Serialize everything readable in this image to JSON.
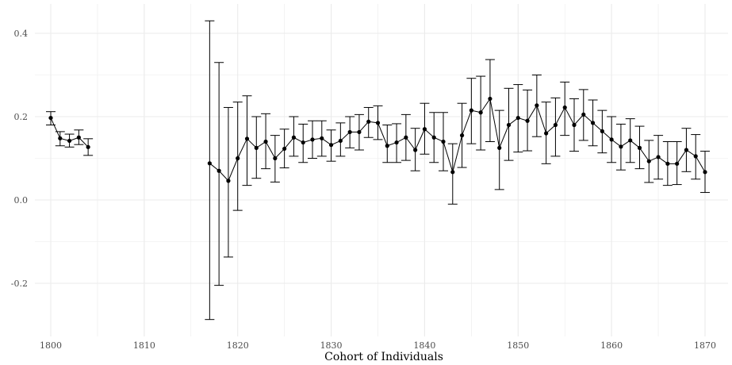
{
  "chart_data": {
    "type": "line",
    "title": "",
    "xlabel": "Cohort of Individuals",
    "ylabel": "",
    "xlim": [
      1796.5,
      1873.5
    ],
    "ylim": [
      -0.31,
      0.46
    ],
    "x_ticks": [
      1800,
      1810,
      1820,
      1830,
      1840,
      1850,
      1860,
      1870
    ],
    "x_tick_labels": [
      "1800",
      "1810",
      "1820",
      "1830",
      "1840",
      "1850",
      "1860",
      "1870"
    ],
    "y_ticks": [
      -0.2,
      0.0,
      0.2,
      0.4
    ],
    "y_tick_labels": [
      "-0.2",
      "0.0",
      "0.2",
      "0.4"
    ],
    "grid": true,
    "legend": "none",
    "colors": {
      "line": "#000000",
      "grid": "#ebebeb",
      "background": "#ffffff"
    },
    "series": [
      {
        "segments": [
          {
            "x": [
              1800,
              1801,
              1802,
              1803,
              1804
            ],
            "y": [
              0.197,
              0.148,
              0.142,
              0.15,
              0.127
            ],
            "lower": [
              0.18,
              0.13,
              0.127,
              0.133,
              0.107
            ],
            "upper": [
              0.212,
              0.164,
              0.158,
              0.168,
              0.147
            ]
          },
          {
            "x": [
              1817,
              1818,
              1819,
              1820,
              1821,
              1822,
              1823,
              1824,
              1825,
              1826,
              1827,
              1828,
              1829,
              1830,
              1831,
              1832,
              1833,
              1834,
              1835,
              1836,
              1837,
              1838,
              1839,
              1840,
              1841,
              1842,
              1843,
              1844,
              1845,
              1846,
              1847,
              1848,
              1849,
              1850,
              1851,
              1852,
              1853,
              1854,
              1855,
              1856,
              1857,
              1858,
              1859,
              1860,
              1861,
              1862,
              1863,
              1864,
              1865,
              1866,
              1867,
              1868,
              1869,
              1870
            ],
            "y": [
              0.088,
              0.07,
              0.046,
              0.1,
              0.147,
              0.125,
              0.14,
              0.1,
              0.123,
              0.15,
              0.138,
              0.145,
              0.148,
              0.132,
              0.142,
              0.163,
              0.163,
              0.188,
              0.185,
              0.13,
              0.138,
              0.15,
              0.12,
              0.17,
              0.15,
              0.14,
              0.067,
              0.155,
              0.215,
              0.21,
              0.243,
              0.125,
              0.18,
              0.197,
              0.19,
              0.227,
              0.16,
              0.18,
              0.222,
              0.18,
              0.205,
              0.185,
              0.165,
              0.145,
              0.128,
              0.143,
              0.125,
              0.093,
              0.103,
              0.087,
              0.087,
              0.12,
              0.105,
              0.067
            ],
            "lower": [
              -0.287,
              -0.205,
              -0.137,
              -0.025,
              0.035,
              0.052,
              0.075,
              0.043,
              0.077,
              0.105,
              0.09,
              0.1,
              0.105,
              0.093,
              0.105,
              0.125,
              0.12,
              0.15,
              0.145,
              0.09,
              0.09,
              0.095,
              0.07,
              0.11,
              0.09,
              0.07,
              -0.01,
              0.078,
              0.135,
              0.12,
              0.14,
              0.025,
              0.095,
              0.115,
              0.118,
              0.152,
              0.087,
              0.105,
              0.155,
              0.117,
              0.143,
              0.13,
              0.113,
              0.09,
              0.072,
              0.09,
              0.075,
              0.042,
              0.05,
              0.035,
              0.037,
              0.068,
              0.05,
              0.018
            ],
            "upper": [
              0.43,
              0.33,
              0.222,
              0.235,
              0.25,
              0.2,
              0.207,
              0.155,
              0.17,
              0.2,
              0.182,
              0.19,
              0.19,
              0.168,
              0.185,
              0.2,
              0.205,
              0.222,
              0.226,
              0.18,
              0.183,
              0.205,
              0.172,
              0.232,
              0.21,
              0.21,
              0.135,
              0.232,
              0.292,
              0.297,
              0.337,
              0.215,
              0.268,
              0.277,
              0.264,
              0.3,
              0.235,
              0.245,
              0.283,
              0.243,
              0.265,
              0.24,
              0.215,
              0.2,
              0.182,
              0.195,
              0.177,
              0.143,
              0.155,
              0.14,
              0.14,
              0.172,
              0.157,
              0.117
            ]
          }
        ]
      }
    ]
  }
}
